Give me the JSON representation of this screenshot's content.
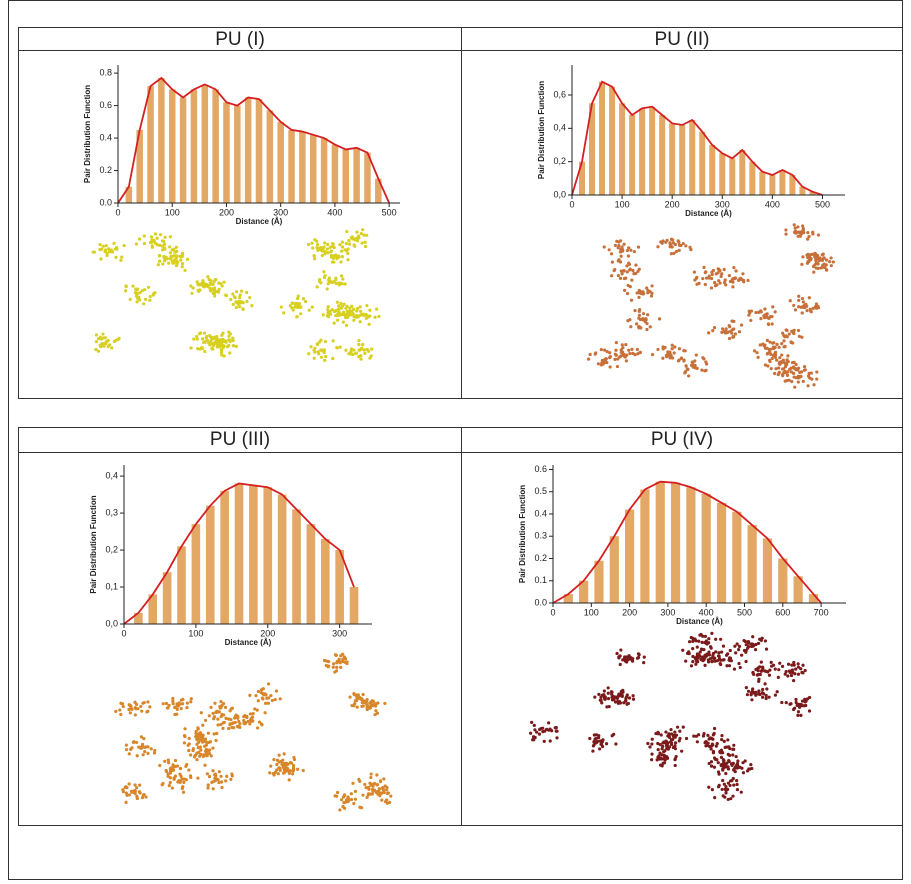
{
  "chart_data": [
    {
      "type": "bar",
      "title": "PU (I)",
      "x_label": "Distance (Å)",
      "y_label": "Pair Distribution Function",
      "color": "#e3a866",
      "line_color": "#d42020",
      "x": [
        0,
        20,
        40,
        60,
        80,
        100,
        120,
        140,
        160,
        180,
        200,
        220,
        240,
        260,
        280,
        300,
        320,
        340,
        360,
        380,
        400,
        420,
        440,
        460,
        480,
        500
      ],
      "values": [
        0,
        0.1,
        0.45,
        0.72,
        0.77,
        0.7,
        0.65,
        0.7,
        0.73,
        0.7,
        0.62,
        0.6,
        0.65,
        0.64,
        0.57,
        0.5,
        0.45,
        0.44,
        0.42,
        0.4,
        0.36,
        0.33,
        0.34,
        0.31,
        0.15,
        0
      ],
      "xlim": [
        0,
        520
      ],
      "xticks": [
        0,
        100,
        200,
        300,
        400,
        500
      ],
      "ylim": [
        0,
        0.85
      ],
      "yticks": [
        {
          "value": 0,
          "label": "0.0"
        },
        0.2,
        0.4,
        0.6,
        0.8
      ]
    },
    {
      "type": "bar",
      "title": "PU (II)",
      "x_label": "Distance (Å)",
      "y_label": "Pair Distribution Function",
      "color": "#e3a866",
      "line_color": "#d42020",
      "x": [
        0,
        20,
        40,
        60,
        80,
        100,
        120,
        140,
        160,
        180,
        200,
        220,
        240,
        260,
        280,
        300,
        320,
        340,
        360,
        380,
        400,
        420,
        440,
        460,
        480,
        500
      ],
      "values": [
        0,
        0.2,
        0.55,
        0.68,
        0.65,
        0.55,
        0.48,
        0.52,
        0.53,
        0.48,
        0.43,
        0.42,
        0.45,
        0.38,
        0.3,
        0.25,
        0.22,
        0.27,
        0.2,
        0.14,
        0.12,
        0.15,
        0.12,
        0.05,
        0.02,
        0
      ],
      "xlim": [
        0,
        545
      ],
      "xticks": [
        0,
        100,
        200,
        300,
        400,
        500
      ],
      "ylim": [
        0,
        0.78
      ],
      "yticks": [
        {
          "value": 0,
          "label": "0,0"
        },
        {
          "value": 0.2,
          "label": "0,2"
        },
        {
          "value": 0.4,
          "label": "0,4"
        },
        {
          "value": 0.6,
          "label": "0,6"
        }
      ]
    },
    {
      "type": "bar",
      "title": "PU (III)",
      "x_label": "Distance (Å)",
      "y_label": "Pair Distribution Function",
      "color": "#e3a866",
      "line_color": "#d42020",
      "x": [
        0,
        20,
        40,
        60,
        80,
        100,
        120,
        140,
        160,
        180,
        200,
        220,
        240,
        260,
        280,
        300,
        320
      ],
      "values": [
        0,
        0.03,
        0.08,
        0.14,
        0.21,
        0.27,
        0.32,
        0.36,
        0.38,
        0.375,
        0.37,
        0.35,
        0.31,
        0.27,
        0.23,
        0.2,
        0.1
      ],
      "xlim": [
        0,
        345
      ],
      "xticks": [
        0,
        100,
        200,
        300
      ],
      "ylim": [
        0,
        0.43
      ],
      "yticks": [
        {
          "value": 0,
          "label": "0,0"
        },
        {
          "value": 0.1,
          "label": "0,1"
        },
        {
          "value": 0.2,
          "label": "0,2"
        },
        {
          "value": 0.3,
          "label": "0,3"
        },
        {
          "value": 0.4,
          "label": "0,4"
        }
      ]
    },
    {
      "type": "bar",
      "title": "PU (IV)",
      "x_label": "Distance (Å)",
      "y_label": "Pair Distribution Function",
      "color": "#e3a866",
      "line_color": "#d42020",
      "x": [
        0,
        40,
        80,
        120,
        160,
        200,
        240,
        280,
        320,
        360,
        400,
        440,
        480,
        520,
        560,
        600,
        640,
        680,
        700
      ],
      "values": [
        0,
        0.04,
        0.1,
        0.19,
        0.3,
        0.42,
        0.51,
        0.545,
        0.54,
        0.52,
        0.49,
        0.45,
        0.41,
        0.35,
        0.29,
        0.2,
        0.12,
        0.04,
        0
      ],
      "xlim": [
        0,
        765
      ],
      "xticks": [
        0,
        100,
        200,
        300,
        400,
        500,
        600,
        700
      ],
      "ylim": [
        0,
        0.62
      ],
      "yticks": [
        {
          "value": 0,
          "label": "0.0"
        },
        0.1,
        0.2,
        0.3,
        0.4,
        0.5,
        0.6
      ]
    }
  ]
}
